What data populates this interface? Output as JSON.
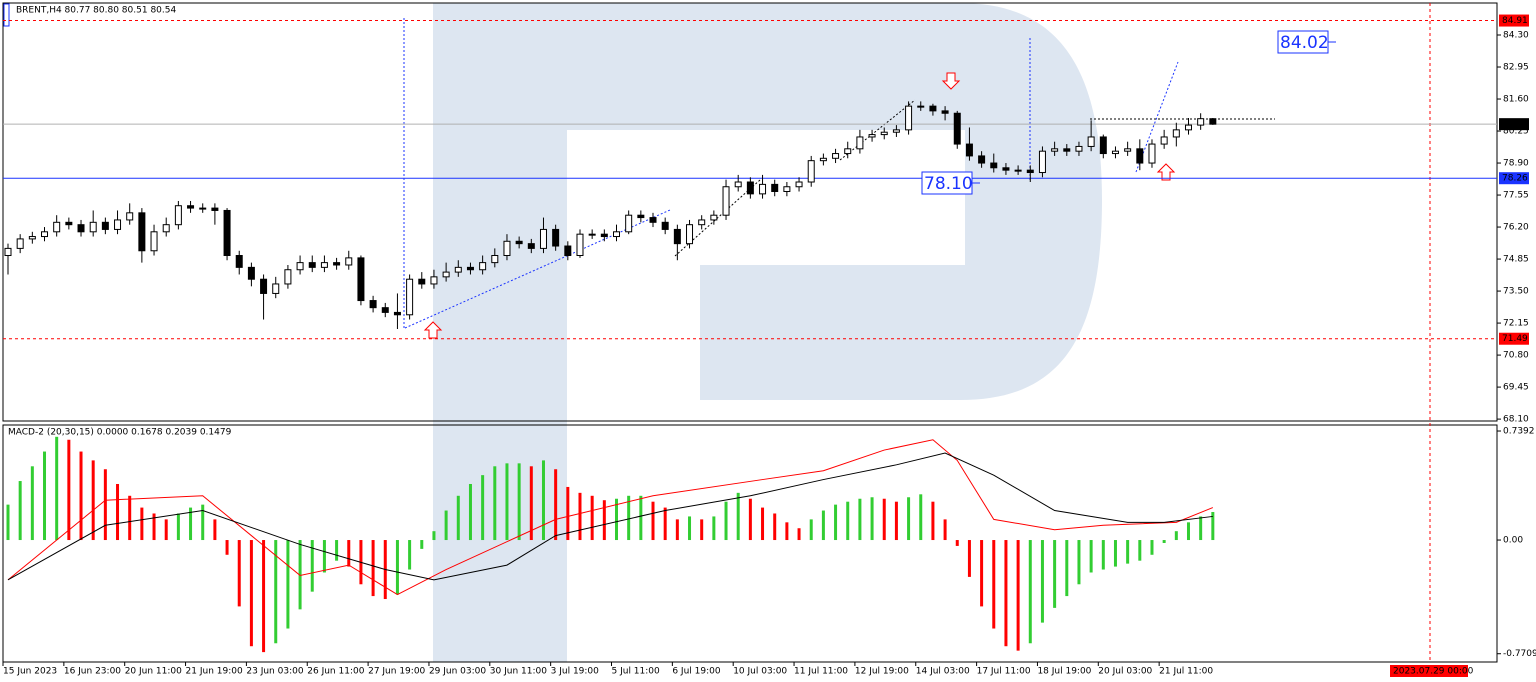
{
  "chart_data": [
    {
      "type": "candlestick",
      "title": "BRENT,H4 80.77 80.80 80.51 80.54",
      "categories": [
        "15 Jun 2023",
        null,
        null,
        null,
        null,
        "16 Jun 23:00",
        null,
        null,
        null,
        null,
        "20 Jun 11:00",
        null,
        null,
        null,
        null,
        "21 Jun 19:00",
        null,
        null,
        null,
        null,
        "23 Jun 03:00",
        null,
        null,
        null,
        null,
        "26 Jun 11:00",
        null,
        null,
        null,
        null,
        "27 Jun 19:00",
        null,
        null,
        null,
        null,
        "29 Jun 03:00",
        null,
        null,
        null,
        null,
        "30 Jun 11:00",
        null,
        null,
        null,
        null,
        "3 Jul 19:00",
        null,
        null,
        null,
        null,
        "5 Jul 11:00",
        null,
        null,
        null,
        null,
        "6 Jul 19:00",
        null,
        null,
        null,
        null,
        "10 Jul 03:00",
        null,
        null,
        null,
        null,
        "11 Jul 11:00",
        null,
        null,
        null,
        null,
        "12 Jul 19:00",
        null,
        null,
        null,
        null,
        "14 Jul 03:00",
        null,
        null,
        null,
        null,
        "17 Jul 11:00",
        null,
        null,
        null,
        null,
        "18 Jul 19:00",
        null,
        null,
        null,
        null,
        "20 Jul 03:00",
        null,
        null,
        null,
        null,
        "21 Jul 11:00",
        null,
        null,
        null,
        null
      ],
      "open": [
        75.0,
        75.3,
        75.7,
        75.8,
        76.0,
        76.4,
        76.3,
        76.0,
        76.4,
        76.1,
        76.5,
        76.8,
        75.2,
        76.0,
        76.3,
        77.1,
        77.0,
        77.0,
        76.9,
        75.0,
        74.5,
        74.0,
        73.4,
        73.8,
        74.4,
        74.7,
        74.5,
        74.7,
        74.6,
        74.9,
        73.1,
        72.8,
        72.6,
        72.5,
        74.0,
        73.8,
        74.1,
        74.3,
        74.5,
        74.4,
        74.7,
        75.0,
        75.6,
        75.5,
        75.3,
        76.1,
        75.4,
        75.0,
        75.9,
        75.9,
        75.8,
        76.0,
        76.7,
        76.6,
        76.4,
        76.1,
        75.5,
        76.3,
        76.5,
        76.7,
        77.9,
        78.1,
        77.6,
        78.0,
        77.7,
        77.9,
        78.1,
        79.0,
        79.1,
        79.3,
        79.5,
        80.0,
        80.1,
        80.2,
        80.3,
        81.3,
        81.3,
        81.1,
        81.0,
        79.7,
        79.2,
        78.9,
        78.7,
        78.6,
        78.6,
        78.5,
        79.4,
        79.5,
        79.4,
        79.6,
        80.0,
        79.3,
        79.4,
        79.5,
        78.9,
        79.7,
        80.0,
        80.3,
        80.5,
        80.77
      ],
      "high": [
        75.5,
        75.9,
        76.0,
        76.2,
        76.7,
        76.6,
        76.5,
        76.9,
        76.6,
        76.9,
        77.2,
        77.0,
        76.3,
        76.6,
        77.3,
        77.3,
        77.2,
        77.2,
        77.0,
        75.2,
        74.7,
        74.2,
        74.1,
        74.6,
        75.0,
        75.0,
        75.0,
        74.9,
        75.2,
        75.0,
        73.3,
        73.0,
        73.4,
        74.2,
        74.3,
        74.4,
        74.7,
        74.8,
        74.7,
        75.0,
        75.3,
        75.9,
        75.8,
        75.7,
        76.6,
        76.3,
        75.6,
        76.1,
        76.1,
        76.1,
        76.3,
        76.9,
        76.9,
        76.8,
        76.6,
        76.3,
        76.5,
        76.7,
        76.9,
        78.2,
        78.4,
        78.3,
        78.4,
        78.2,
        78.1,
        78.3,
        79.2,
        79.3,
        79.5,
        79.8,
        80.3,
        80.3,
        80.4,
        80.5,
        81.5,
        81.5,
        81.4,
        81.3,
        81.1,
        80.4,
        79.4,
        79.3,
        78.9,
        78.8,
        78.8,
        79.6,
        79.8,
        79.7,
        79.8,
        80.7,
        80.1,
        79.6,
        79.8,
        79.9,
        79.9,
        80.3,
        80.6,
        80.8,
        81.0,
        80.8
      ],
      "low": [
        74.2,
        75.1,
        75.5,
        75.6,
        75.8,
        76.1,
        75.8,
        75.8,
        75.9,
        75.9,
        76.3,
        74.7,
        75.0,
        75.8,
        76.1,
        76.8,
        76.8,
        76.3,
        74.8,
        74.2,
        73.7,
        72.3,
        73.2,
        73.6,
        74.2,
        74.3,
        74.3,
        74.4,
        74.4,
        72.9,
        72.6,
        72.4,
        71.9,
        72.3,
        73.6,
        73.6,
        73.9,
        74.1,
        74.2,
        74.2,
        74.5,
        74.8,
        75.3,
        75.1,
        75.1,
        75.2,
        74.8,
        74.9,
        75.7,
        75.6,
        75.6,
        75.9,
        76.4,
        76.2,
        75.9,
        74.8,
        75.3,
        76.1,
        76.3,
        76.5,
        77.7,
        77.4,
        77.4,
        77.5,
        77.5,
        77.7,
        77.9,
        78.8,
        78.9,
        79.1,
        79.3,
        79.8,
        79.9,
        80.0,
        80.1,
        81.1,
        80.9,
        80.7,
        79.5,
        79.0,
        78.7,
        78.5,
        78.4,
        78.4,
        78.1,
        78.3,
        79.2,
        79.2,
        79.2,
        79.4,
        79.1,
        79.1,
        79.2,
        78.6,
        78.7,
        79.5,
        79.6,
        80.1,
        80.3,
        80.51
      ],
      "close": [
        75.3,
        75.7,
        75.8,
        76.0,
        76.4,
        76.3,
        76.0,
        76.4,
        76.1,
        76.5,
        76.8,
        75.2,
        76.0,
        76.3,
        77.1,
        77.0,
        77.0,
        76.9,
        75.0,
        74.5,
        74.0,
        73.4,
        73.8,
        74.4,
        74.7,
        74.5,
        74.7,
        74.6,
        74.9,
        73.1,
        72.8,
        72.6,
        72.5,
        74.0,
        73.8,
        74.1,
        74.3,
        74.5,
        74.4,
        74.7,
        75.0,
        75.6,
        75.5,
        75.3,
        76.1,
        75.4,
        75.0,
        75.9,
        75.9,
        75.8,
        76.0,
        76.7,
        76.6,
        76.4,
        76.1,
        75.5,
        76.3,
        76.5,
        76.7,
        77.9,
        78.1,
        77.6,
        78.0,
        77.7,
        77.9,
        78.1,
        79.0,
        79.1,
        79.3,
        79.5,
        80.0,
        80.1,
        80.2,
        80.3,
        81.3,
        81.3,
        81.1,
        81.0,
        79.7,
        79.2,
        78.9,
        78.7,
        78.6,
        78.6,
        78.5,
        79.4,
        79.5,
        79.4,
        79.6,
        80.0,
        79.3,
        79.4,
        79.5,
        78.9,
        79.7,
        80.0,
        80.3,
        80.5,
        80.77,
        80.54
      ],
      "up_color": "#ffffff",
      "down_color": "#000000",
      "ylim": [
        68.02,
        85.65
      ],
      "yticks": [
        {
          "value": 84.3,
          "label": "84.30"
        },
        82.95,
        {
          "value": 81.6,
          "label": "81.60"
        },
        80.25,
        {
          "value": 78.9,
          "label": "78.90"
        },
        77.55,
        {
          "value": 76.2,
          "label": "76.20"
        },
        74.85,
        {
          "value": 73.5,
          "label": "73.50"
        },
        72.15,
        {
          "value": 70.8,
          "label": "70.80"
        },
        69.45,
        {
          "value": 68.1,
          "label": "68.10"
        }
      ],
      "levels": [
        {
          "value": 84.91,
          "color": "#ff0000",
          "style": "dashed"
        },
        {
          "value": 80.54,
          "color": "#000000",
          "style": "gray"
        },
        {
          "value": 78.26,
          "color": "#1a33ff",
          "style": "solid"
        },
        {
          "value": 71.49,
          "color": "#ff0000",
          "style": "dashed"
        }
      ],
      "annotations": [
        "84.02",
        "78.10"
      ],
      "time_marker": "2023.07.29 00:00"
    },
    {
      "type": "bar",
      "title": "MACD-2 (20,30,15) 0.0000 0.1678 0.2039 0.1479",
      "values": [
        0.24,
        0.4,
        0.5,
        0.6,
        0.7,
        0.68,
        0.6,
        0.54,
        0.48,
        0.38,
        0.3,
        0.22,
        0.18,
        0.14,
        0.18,
        0.22,
        0.24,
        0.14,
        -0.1,
        -0.45,
        -0.72,
        -0.76,
        -0.7,
        -0.6,
        -0.47,
        -0.35,
        -0.22,
        -0.14,
        -0.18,
        -0.3,
        -0.38,
        -0.4,
        -0.37,
        -0.2,
        -0.06,
        0.06,
        0.2,
        0.3,
        0.38,
        0.44,
        0.5,
        0.52,
        0.52,
        0.5,
        0.54,
        0.48,
        0.36,
        0.32,
        0.3,
        0.27,
        0.28,
        0.3,
        0.3,
        0.26,
        0.22,
        0.14,
        0.16,
        0.14,
        0.16,
        0.26,
        0.32,
        0.28,
        0.22,
        0.18,
        0.12,
        0.08,
        0.14,
        0.2,
        0.24,
        0.26,
        0.28,
        0.29,
        0.28,
        0.26,
        0.29,
        0.31,
        0.26,
        0.14,
        -0.04,
        -0.25,
        -0.45,
        -0.6,
        -0.72,
        -0.75,
        -0.7,
        -0.56,
        -0.46,
        -0.38,
        -0.3,
        -0.22,
        -0.2,
        -0.18,
        -0.16,
        -0.14,
        -0.1,
        -0.02,
        0.06,
        0.12,
        0.16,
        0.19
      ],
      "up_color": "#32cd32",
      "down_color": "#ff0000",
      "series": [
        {
          "color": "#ff0000",
          "x": [
            0,
            8,
            16,
            24,
            28,
            32,
            36,
            45,
            53,
            62,
            67,
            72,
            76,
            78,
            81,
            86,
            90,
            96,
            99
          ],
          "values": [
            -0.27,
            0.27,
            0.3,
            -0.24,
            -0.17,
            -0.37,
            -0.2,
            0.14,
            0.3,
            0.41,
            0.47,
            0.61,
            0.68,
            0.54,
            0.14,
            0.07,
            0.1,
            0.12,
            0.22
          ]
        },
        {
          "color": "#000000",
          "x": [
            0,
            8,
            16,
            24,
            31,
            35,
            41,
            45,
            54,
            61,
            67,
            73,
            77,
            81,
            86,
            92,
            95,
            99
          ],
          "values": [
            -0.27,
            0.1,
            0.2,
            -0.03,
            -0.2,
            -0.27,
            -0.17,
            0.03,
            0.2,
            0.3,
            0.41,
            0.51,
            0.59,
            0.44,
            0.2,
            0.12,
            0.12,
            0.16
          ]
        }
      ],
      "ylim": [
        -0.827,
        0.78
      ],
      "yticks": [
        0.7392,
        {
          "value": 0,
          "label": "0.00"
        },
        -0.7709
      ]
    }
  ]
}
